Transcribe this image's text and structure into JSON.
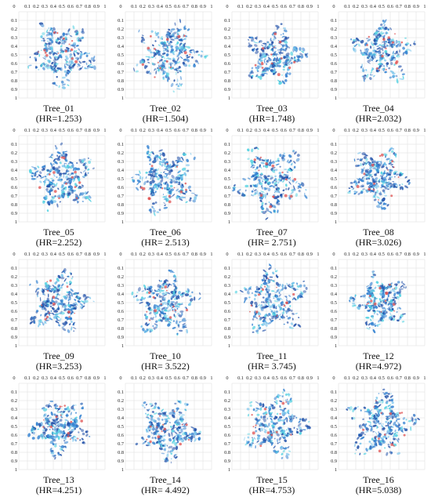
{
  "axis": {
    "x_ticks": [
      "0",
      "0.1",
      "0.2",
      "0.3",
      "0.4",
      "0.5",
      "0.6",
      "0.7",
      "0.8",
      "0.9",
      "1"
    ],
    "y_ticks": [
      "0.1",
      "0.2",
      "0.3",
      "0.4",
      "0.5",
      "0.6",
      "0.7",
      "0.8",
      "0.9",
      "1"
    ]
  },
  "colors": {
    "dark_blue": "#1f4fa8",
    "mid_blue": "#2f7fd0",
    "light_blue": "#6fc0ea",
    "cyan": "#4fd0e0",
    "red": "#e05050",
    "grid": "#dddddd"
  },
  "trees": [
    {
      "name": "Tree_01",
      "hr": "(HR=1.253)"
    },
    {
      "name": "Tree_02",
      "hr": "(HR=1.504)"
    },
    {
      "name": "Tree_03",
      "hr": "(HR=1.748)"
    },
    {
      "name": "Tree_04",
      "hr": "(HR=2.032)"
    },
    {
      "name": "Tree_05",
      "hr": "(HR=2.252)"
    },
    {
      "name": "Tree_06",
      "hr": "(HR= 2.513)"
    },
    {
      "name": "Tree_07",
      "hr": "(HR= 2.751)"
    },
    {
      "name": "Tree_08",
      "hr": "(HR=3.026)"
    },
    {
      "name": "Tree_09",
      "hr": "(HR=3.253)"
    },
    {
      "name": "Tree_10",
      "hr": "(HR= 3.522)"
    },
    {
      "name": "Tree_11",
      "hr": "(HR= 3.745)"
    },
    {
      "name": "Tree_12",
      "hr": "(HR=4.972)"
    },
    {
      "name": "Tree_13",
      "hr": "(HR=4.251)"
    },
    {
      "name": "Tree_14",
      "hr": "(HR= 4.492)"
    },
    {
      "name": "Tree_15",
      "hr": "(HR=4.753)"
    },
    {
      "name": "Tree_16",
      "hr": "(HR=5.038)"
    }
  ]
}
